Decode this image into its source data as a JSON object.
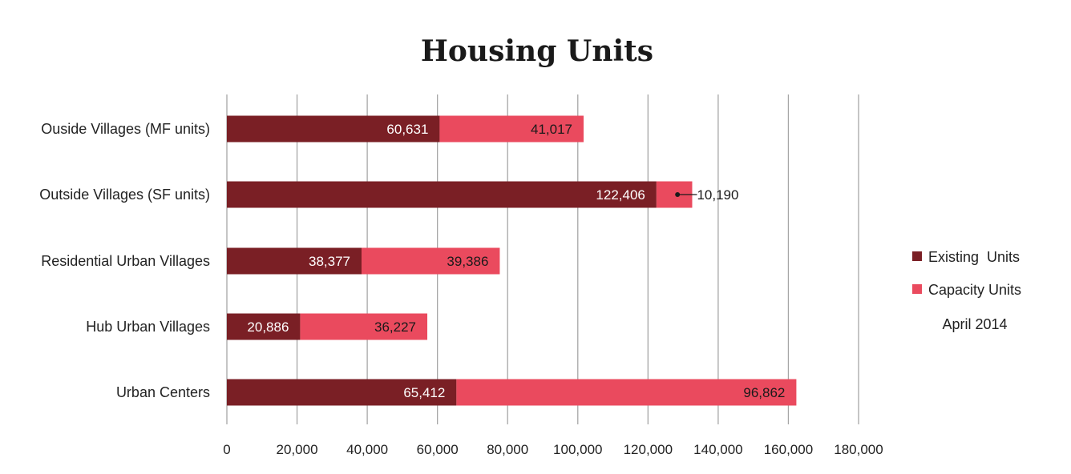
{
  "chart_data": {
    "type": "bar",
    "orientation": "horizontal",
    "stacked": true,
    "title": "Housing Units",
    "categories": [
      "Ouside Villages (MF units)",
      "Outside Villages (SF units)",
      "Residential Urban Villages",
      "Hub Urban Villages",
      "Urban Centers"
    ],
    "series": [
      {
        "name": "Existing  Units",
        "color": "#7a1f25",
        "values": [
          60631,
          122406,
          38377,
          20886,
          65412
        ]
      },
      {
        "name": "Capacity Units",
        "color": "#ea4a5e",
        "values": [
          41017,
          10190,
          39386,
          36227,
          96862
        ]
      }
    ],
    "data_labels": [
      [
        "60,631",
        "122,406",
        "38,377",
        "20,886",
        "65,412"
      ],
      [
        "41,017",
        "10,190",
        "39,386",
        "36,227",
        "96,862"
      ]
    ],
    "xlim": [
      0,
      180000
    ],
    "x_ticks": [
      0,
      20000,
      40000,
      60000,
      80000,
      100000,
      120000,
      140000,
      160000,
      180000
    ],
    "x_tick_labels": [
      "0",
      "20,000",
      "40,000",
      "60,000",
      "80,000",
      "100,000",
      "120,000",
      "140,000",
      "160,000",
      "180,000"
    ],
    "grid": "vertical",
    "legend": {
      "placement": "right",
      "note": "April 2014"
    }
  }
}
